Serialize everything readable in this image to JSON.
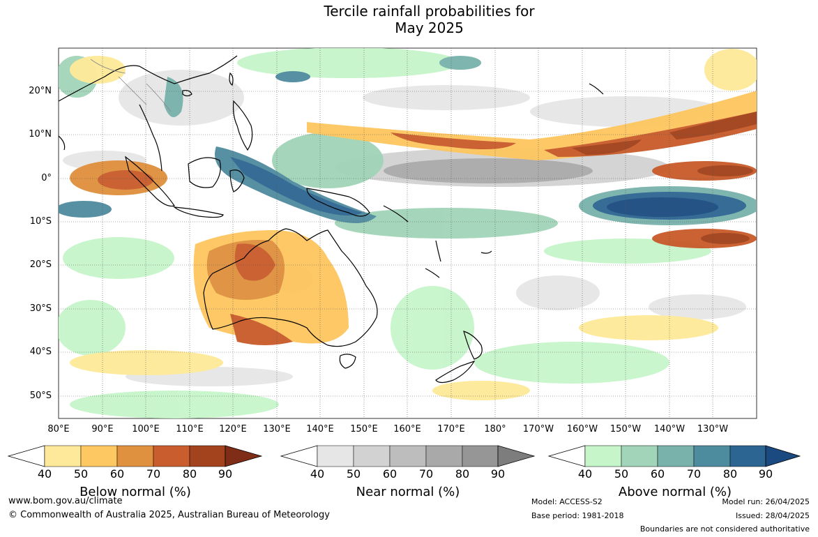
{
  "title": {
    "line1": "Tercile rainfall probabilities for",
    "line2": "May 2025"
  },
  "map": {
    "lat_labels": [
      "20°N",
      "10°N",
      "0°",
      "10°S",
      "20°S",
      "30°S",
      "40°S",
      "50°S"
    ],
    "lon_labels": [
      "80°E",
      "90°E",
      "100°E",
      "110°E",
      "120°E",
      "130°E",
      "140°E",
      "150°E",
      "160°E",
      "170°E",
      "180°",
      "170°W",
      "160°W",
      "150°W",
      "140°W",
      "130°W"
    ],
    "colors": {
      "below": [
        "#fee99a",
        "#fdc761",
        "#e0913f",
        "#c95d2d",
        "#a3431d",
        "#7f2d16"
      ],
      "near": [
        "#e6e6e6",
        "#d2d2d2",
        "#bdbdbd",
        "#a9a9a9",
        "#969696",
        "#7d7d7d"
      ],
      "above": [
        "#c6f5c9",
        "#a1d4b8",
        "#78b2aa",
        "#4d8b9e",
        "#2c6591",
        "#1a4a80"
      ],
      "coastline": "#000000",
      "borders": "#888888"
    }
  },
  "colorbars": [
    {
      "label": "Below normal (%)",
      "ticks": [
        "40",
        "50",
        "60",
        "70",
        "80",
        "90"
      ]
    },
    {
      "label": "Near normal (%)",
      "ticks": [
        "40",
        "50",
        "60",
        "70",
        "80",
        "90"
      ]
    },
    {
      "label": "Above normal (%)",
      "ticks": [
        "40",
        "50",
        "60",
        "70",
        "80",
        "90"
      ]
    }
  ],
  "footer": {
    "website": "www.bom.gov.au/climate",
    "copyright": "© Commonwealth of Australia 2025, Australian Bureau of Meteorology",
    "model": "Model: ACCESS-S2",
    "base_period": "Base period: 1981-2018",
    "model_run": "Model run: 26/04/2025",
    "issued": "Issued: 28/04/2025",
    "disclaimer": "Boundaries are not considered authoritative"
  }
}
